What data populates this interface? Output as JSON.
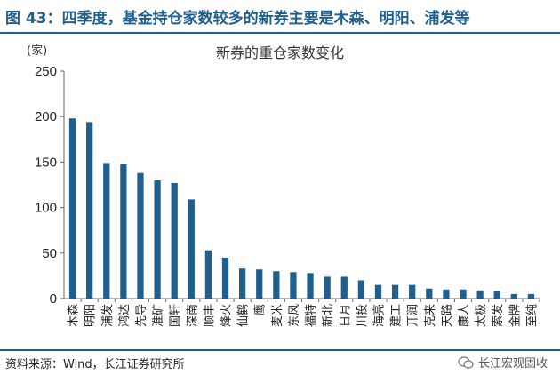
{
  "figure": {
    "title": "图 43：四季度，基金持仓家数较多的新券主要是木森、明阳、浦发等",
    "source": "资料来源：Wind，长江证券研究所",
    "brand": "长江宏观固收"
  },
  "chart_data": {
    "type": "bar",
    "title": "新券的重仓家数变化",
    "ylabel": "(家)",
    "xlabel": "",
    "ylim": [
      0,
      250
    ],
    "yticks": [
      0,
      50,
      100,
      150,
      200,
      250
    ],
    "grid": false,
    "legend": "none",
    "bar_color": "#1f5f8e",
    "categories": [
      "木森",
      "明阳",
      "浦发",
      "鸿达",
      "先导",
      "淮矿",
      "国轩",
      "深南",
      "顺丰",
      "烽火",
      "仙鹤",
      "鹰",
      "麦米",
      "东风",
      "福特",
      "新北",
      "日月",
      "川投",
      "海亮",
      "建工",
      "开润",
      "克来",
      "天路",
      "康人",
      "太极",
      "索发",
      "金牌",
      "至纯"
    ],
    "values": [
      198,
      194,
      149,
      148,
      138,
      130,
      127,
      109,
      53,
      45,
      33,
      32,
      30,
      29,
      28,
      24,
      24,
      20,
      15,
      15,
      15,
      11,
      10,
      10,
      9,
      8,
      5,
      5
    ]
  }
}
